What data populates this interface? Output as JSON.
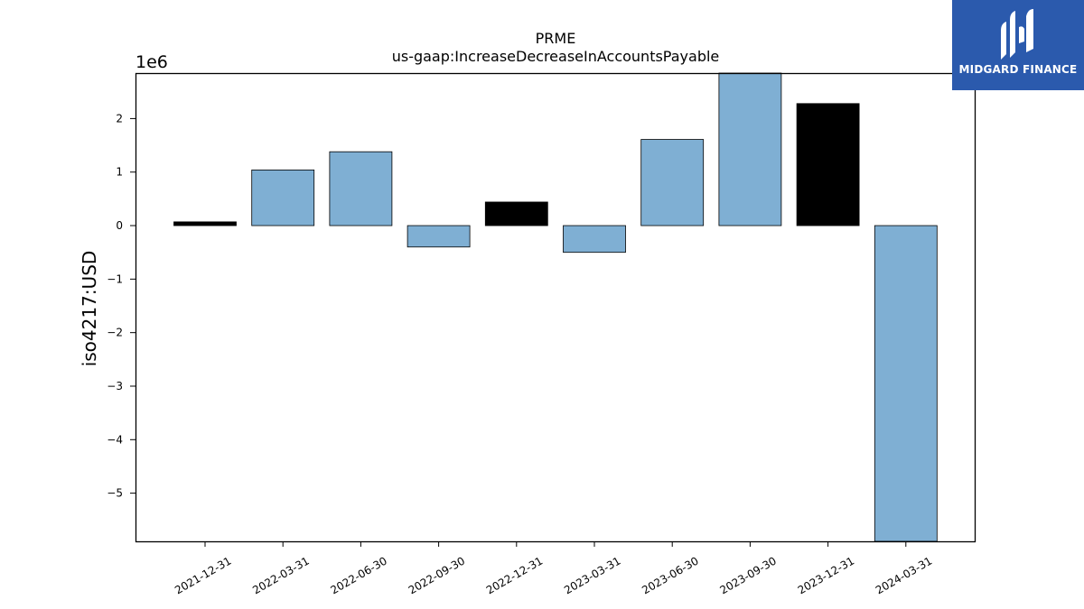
{
  "brand": {
    "name": "MIDGARD FINANCE",
    "bg_color": "#2b5aad"
  },
  "chart_data": {
    "type": "bar",
    "title": "PRME",
    "subtitle": "us-gaap:IncreaseDecreaseInAccountsPayable",
    "ylabel": "iso4217:USD",
    "xlabel": "",
    "y_scale_label": "1e6",
    "ylim": [
      -5.9,
      2.85
    ],
    "yticks": [
      -5,
      -4,
      -3,
      -2,
      -1,
      0,
      1,
      2
    ],
    "ytick_labels": [
      "−5",
      "−4",
      "−3",
      "−2",
      "−1",
      "0",
      "1",
      "2"
    ],
    "categories": [
      "2021-12-31",
      "2022-03-31",
      "2022-06-30",
      "2022-09-30",
      "2022-12-31",
      "2023-03-31",
      "2023-06-30",
      "2023-09-30",
      "2023-12-31",
      "2024-03-31"
    ],
    "values": [
      0.07,
      1.04,
      1.38,
      -0.4,
      0.44,
      -0.5,
      1.61,
      2.85,
      2.28,
      -5.9
    ],
    "bar_colors": [
      "#000000",
      "#7fafd3",
      "#7fafd3",
      "#7fafd3",
      "#000000",
      "#7fafd3",
      "#7fafd3",
      "#7fafd3",
      "#000000",
      "#7fafd3"
    ],
    "grid": false,
    "legend": "none"
  }
}
